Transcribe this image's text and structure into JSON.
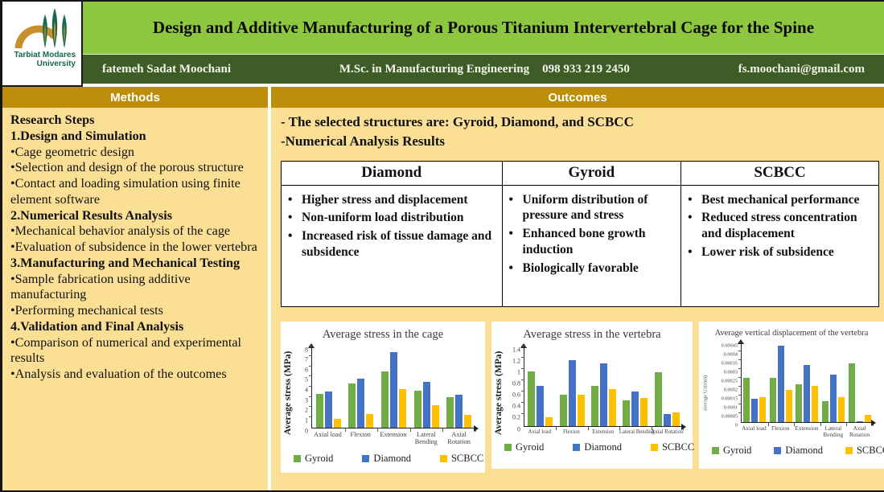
{
  "colors": {
    "title_bar_green": "#8DC63F",
    "author_bar_green": "#3E5C26",
    "section_header_gold": "#BC8E09",
    "panel_background_yellow": "#FBDF94",
    "gyroid_green": "#70AD47",
    "diamond_blue": "#4472C4",
    "scbcc_yellow": "#FFC000"
  },
  "header": {
    "logo": {
      "line1": "Tarbiat Modares",
      "line2": "University"
    },
    "title": "Design and Additive Manufacturing of a Porous Titanium Intervertebral Cage for the Spine",
    "author": "fatemeh Sadat Moochani",
    "degree": "M.Sc. in Manufacturing Engineering",
    "phone": "098 933 219 2450",
    "email": "fs.moochani@gmail.com"
  },
  "sections": {
    "methods_label": "Methods",
    "outcomes_label": "Outcomes"
  },
  "methods": {
    "items": [
      {
        "text": "Research Steps",
        "bold": true
      },
      {
        "text": "1.Design and Simulation",
        "bold": true
      },
      {
        "text": "•Cage geometric design",
        "bold": false
      },
      {
        "text": "•Selection and design of the porous structure",
        "bold": false
      },
      {
        "text": "•Contact and loading simulation using finite element software",
        "bold": false
      },
      {
        "text": "2.Numerical Results Analysis",
        "bold": true
      },
      {
        "text": "•Mechanical behavior analysis of the cage",
        "bold": false
      },
      {
        "text": "•Evaluation of subsidence in the lower vertebra",
        "bold": false
      },
      {
        "text": "3.Manufacturing and Mechanical Testing",
        "bold": true
      },
      {
        "text": "•Sample fabrication using additive manufacturing",
        "bold": false
      },
      {
        "text": "•Performing mechanical tests",
        "bold": false
      },
      {
        "text": "4.Validation and Final Analysis",
        "bold": true
      },
      {
        "text": "•Comparison of numerical and experimental results",
        "bold": false
      },
      {
        "text": "•Analysis and evaluation of the outcomes",
        "bold": false
      }
    ]
  },
  "outcomes": {
    "intro_lines": [
      "- The selected structures are: Gyroid, Diamond, and SCBCC",
      "-Numerical Analysis Results"
    ],
    "comparison_table": {
      "columns": [
        {
          "header": "Diamond",
          "bullets": [
            "Higher stress and displacement",
            "Non-uniform load distribution",
            "Increased risk of tissue damage and subsidence"
          ]
        },
        {
          "header": "Gyroid",
          "bullets": [
            "Uniform distribution of pressure and stress",
            "Enhanced bone growth induction",
            "Biologically favorable"
          ]
        },
        {
          "header": "SCBCC",
          "bullets": [
            "Best mechanical performance",
            "Reduced stress concentration and displacement",
            "Lower risk of subsidence"
          ]
        }
      ]
    }
  },
  "chart_data": [
    {
      "type": "bar",
      "title": "Average stress in the cage",
      "ylabel": "Average stress (MPa)",
      "xlabel": "",
      "categories": [
        "Axial load",
        "Flexion",
        "Extension",
        "Lateral Bending",
        "Axial Rotation"
      ],
      "series": [
        {
          "name": "Gyroid",
          "color": "#70AD47",
          "values": [
            3.3,
            4.3,
            5.55,
            3.6,
            3.0
          ]
        },
        {
          "name": "Diamond",
          "color": "#4472C4",
          "values": [
            3.55,
            4.8,
            7.4,
            4.5,
            3.2
          ]
        },
        {
          "name": "SCBCC",
          "color": "#FFC000",
          "values": [
            0.85,
            1.35,
            3.8,
            2.2,
            1.25
          ]
        }
      ],
      "ylim": [
        0,
        8
      ],
      "yticks": [
        "0",
        "1",
        "2",
        "3",
        "4",
        "5",
        "6",
        "7",
        "8"
      ],
      "grid": false,
      "legend_position": "bottom"
    },
    {
      "type": "bar",
      "title": "Average stress in the vertebra",
      "ylabel": "Average stress (MPa)",
      "xlabel": "",
      "categories": [
        "Axial load",
        "Flexion",
        "Extension",
        "Lateral Bending",
        "Axial Rotation"
      ],
      "series": [
        {
          "name": "Gyroid",
          "color": "#70AD47",
          "values": [
            0.95,
            0.55,
            0.7,
            0.44,
            0.94
          ]
        },
        {
          "name": "Diamond",
          "color": "#4472C4",
          "values": [
            0.7,
            1.16,
            1.1,
            0.6,
            0.21
          ]
        },
        {
          "name": "SCBCC",
          "color": "#FFC000",
          "values": [
            0.15,
            0.54,
            0.64,
            0.49,
            0.23
          ]
        }
      ],
      "ylim": [
        0,
        1.4
      ],
      "yticks": [
        "0",
        "0.2",
        "0.4",
        "0.6",
        "0.8",
        "1",
        "1.2",
        "1.4"
      ],
      "grid": false,
      "legend_position": "bottom"
    },
    {
      "type": "bar",
      "title": "Average vertical displacement of the vertebra",
      "ylabel": "average U3(mm)",
      "xlabel": "",
      "categories": [
        "Axial load",
        "Flexion",
        "Extension",
        "Lateral Bending",
        "Axial Rotation"
      ],
      "series": [
        {
          "name": "Gyroid",
          "color": "#70AD47",
          "values": [
            0.00025,
            0.00025,
            0.00021,
            0.000115,
            0.00033
          ]
        },
        {
          "name": "Diamond",
          "color": "#4472C4",
          "values": [
            0.00013,
            0.00043,
            0.00032,
            0.000265,
            5e-06
          ]
        },
        {
          "name": "SCBCC",
          "color": "#FFC000",
          "values": [
            0.00014,
            0.00018,
            0.000205,
            0.00014,
            4e-05
          ]
        }
      ],
      "ylim": [
        0,
        0.00045
      ],
      "yticks": [
        "0",
        "0.00005",
        "0.0001",
        "0.00015",
        "0.0002",
        "0.00025",
        "0.0003",
        "0.00035",
        "0.0004",
        "0.00045"
      ],
      "grid": false,
      "legend_position": "bottom"
    }
  ]
}
